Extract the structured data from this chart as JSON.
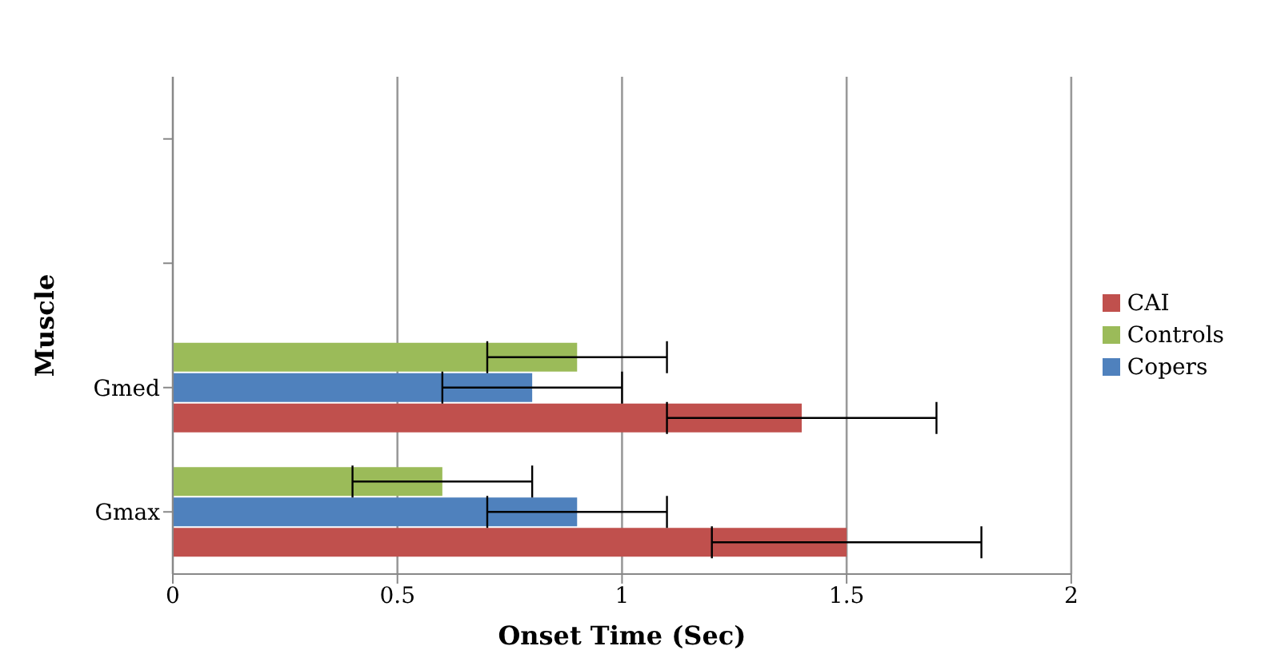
{
  "chart_data": {
    "type": "bar",
    "orientation": "horizontal",
    "xlabel": "Onset Time (Sec)",
    "ylabel": "Muscle",
    "categories": [
      null,
      null,
      "Gmed",
      "Gmax"
    ],
    "series": [
      {
        "name": "Controls",
        "color": "#9bbb59",
        "values": [
          null,
          null,
          0.9,
          0.6
        ],
        "errors": [
          null,
          null,
          0.2,
          0.2
        ]
      },
      {
        "name": "Copers",
        "color": "#4f81bd",
        "values": [
          null,
          null,
          0.8,
          0.9
        ],
        "errors": [
          null,
          null,
          0.2,
          0.2
        ]
      },
      {
        "name": "CAI",
        "color": "#c0504d",
        "values": [
          null,
          null,
          1.4,
          1.5
        ],
        "errors": [
          null,
          null,
          0.3,
          0.3
        ]
      }
    ],
    "xlim": [
      0,
      2
    ],
    "xticks": [
      0,
      0.5,
      1,
      1.5,
      2
    ],
    "grid": "x",
    "legend": "right"
  }
}
